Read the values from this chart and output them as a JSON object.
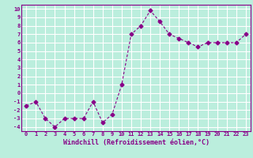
{
  "x": [
    0,
    1,
    2,
    3,
    4,
    5,
    6,
    7,
    8,
    9,
    10,
    11,
    12,
    13,
    14,
    15,
    16,
    17,
    18,
    19,
    20,
    21,
    22,
    23
  ],
  "y": [
    -1.5,
    -1.0,
    -3.0,
    -4.0,
    -3.0,
    -3.0,
    -3.0,
    -1.0,
    -3.5,
    -2.5,
    1.0,
    7.0,
    8.0,
    9.8,
    8.5,
    7.0,
    6.5,
    6.0,
    5.5,
    6.0,
    6.0,
    6.0,
    6.0,
    7.0
  ],
  "xlabel": "Windchill (Refroidissement éolien,°C)",
  "ylim": [
    -4.5,
    10.5
  ],
  "xlim": [
    -0.5,
    23.5
  ],
  "line_color": "#880088",
  "marker": "D",
  "marker_size": 2.5,
  "bg_color": "#bbeedd",
  "grid_color": "#ffffff",
  "tick_label_color": "#880088",
  "xlabel_color": "#880088",
  "yticks": [
    -4,
    -3,
    -2,
    -1,
    0,
    1,
    2,
    3,
    4,
    5,
    6,
    7,
    8,
    9,
    10
  ],
  "xticks": [
    0,
    1,
    2,
    3,
    4,
    5,
    6,
    7,
    8,
    9,
    10,
    11,
    12,
    13,
    14,
    15,
    16,
    17,
    18,
    19,
    20,
    21,
    22,
    23
  ],
  "border_color": "#880088"
}
